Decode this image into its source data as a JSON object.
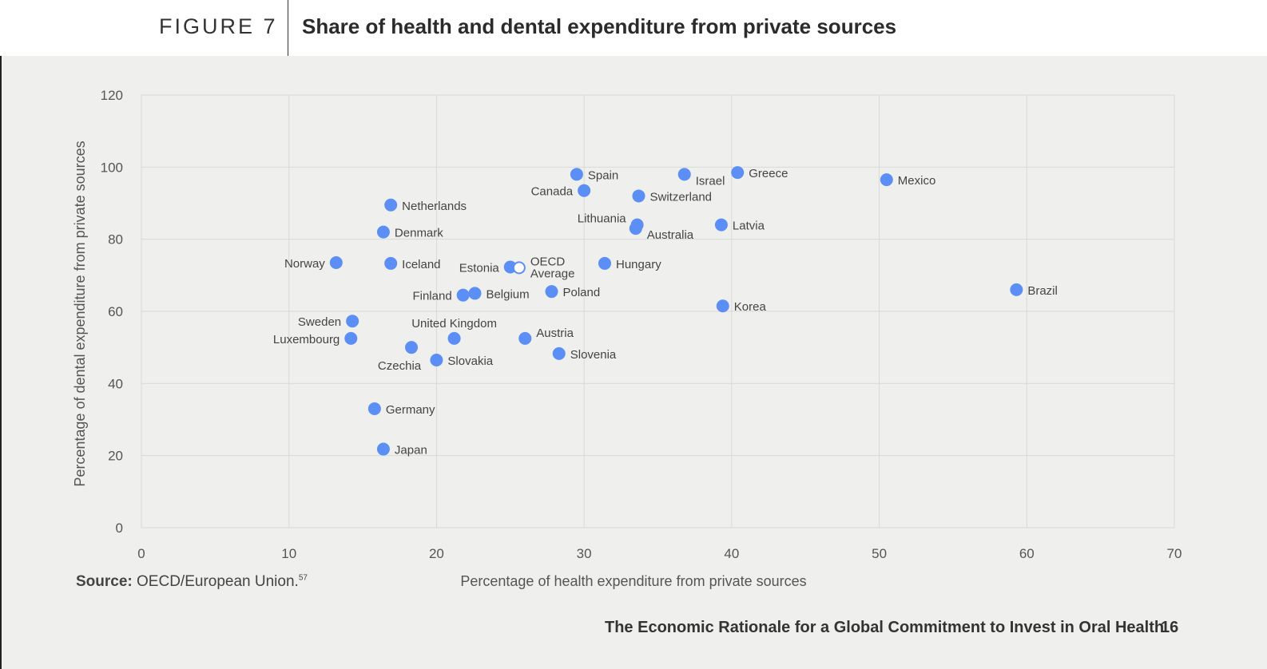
{
  "figure": {
    "number": "FIGURE 7",
    "title": "Share of health and dental expenditure from private sources"
  },
  "source": {
    "label": "Source:",
    "text": "OECD/European Union.",
    "ref": "57"
  },
  "footer": {
    "text": "The Economic Rationale for a Global Commitment to Invest in Oral Health",
    "page": "16"
  },
  "colors": {
    "point": "#5b8ff5",
    "grid": "#d9d9d6",
    "background": "#efefed"
  },
  "chart_data": {
    "type": "scatter",
    "title": "Share of health and dental expenditure from private sources",
    "xlabel": "Percentage of health expenditure from private sources",
    "ylabel": "Percentage of dental expenditure from private sources",
    "xlim": [
      0,
      70
    ],
    "ylim": [
      0,
      120
    ],
    "xticks": [
      0,
      10,
      20,
      30,
      40,
      50,
      60,
      70
    ],
    "yticks": [
      0,
      20,
      40,
      60,
      80,
      100,
      120
    ],
    "grid": true,
    "points": [
      {
        "label": "Spain",
        "x": 29.5,
        "y": 98,
        "pos": "right"
      },
      {
        "label": "Israel",
        "x": 36.8,
        "y": 98,
        "pos": "right-low"
      },
      {
        "label": "Greece",
        "x": 40.4,
        "y": 98.5,
        "pos": "right"
      },
      {
        "label": "Mexico",
        "x": 50.5,
        "y": 96.5,
        "pos": "right"
      },
      {
        "label": "Canada",
        "x": 30,
        "y": 93.5,
        "pos": "left"
      },
      {
        "label": "Switzerland",
        "x": 33.7,
        "y": 92,
        "pos": "right"
      },
      {
        "label": "Netherlands",
        "x": 16.9,
        "y": 89.5,
        "pos": "right"
      },
      {
        "label": "Lithuania",
        "x": 33.6,
        "y": 84,
        "pos": "left-high"
      },
      {
        "label": "Latvia",
        "x": 39.3,
        "y": 84,
        "pos": "right"
      },
      {
        "label": "Australia",
        "x": 33.5,
        "y": 83,
        "pos": "right-low"
      },
      {
        "label": "Denmark",
        "x": 16.4,
        "y": 82,
        "pos": "right"
      },
      {
        "label": "Norway",
        "x": 13.2,
        "y": 73.5,
        "pos": "left"
      },
      {
        "label": "Iceland",
        "x": 16.9,
        "y": 73.3,
        "pos": "right"
      },
      {
        "label": "Hungary",
        "x": 31.4,
        "y": 73.3,
        "pos": "right"
      },
      {
        "label": "Estonia",
        "x": 25,
        "y": 72.3,
        "pos": "left"
      },
      {
        "label": "OECD Average",
        "x": 25.6,
        "y": 72.1,
        "pos": "right",
        "hollow": true
      },
      {
        "label": "Brazil",
        "x": 59.3,
        "y": 66,
        "pos": "right"
      },
      {
        "label": "Poland",
        "x": 27.8,
        "y": 65.5,
        "pos": "right"
      },
      {
        "label": "Belgium",
        "x": 22.6,
        "y": 65,
        "pos": "right"
      },
      {
        "label": "Finland",
        "x": 21.8,
        "y": 64.5,
        "pos": "left"
      },
      {
        "label": "Korea",
        "x": 39.4,
        "y": 61.5,
        "pos": "right"
      },
      {
        "label": "Sweden",
        "x": 14.3,
        "y": 57.3,
        "pos": "left"
      },
      {
        "label": "Luxembourg",
        "x": 14.2,
        "y": 52.5,
        "pos": "left"
      },
      {
        "label": "United Kingdom",
        "x": 21.2,
        "y": 52.5,
        "pos": "above"
      },
      {
        "label": "Austria",
        "x": 26,
        "y": 52.5,
        "pos": "right-high"
      },
      {
        "label": "Czechia",
        "x": 18.3,
        "y": 50,
        "pos": "below-left"
      },
      {
        "label": "Slovenia",
        "x": 28.3,
        "y": 48.3,
        "pos": "right"
      },
      {
        "label": "Slovakia",
        "x": 20,
        "y": 46.5,
        "pos": "right"
      },
      {
        "label": "Germany",
        "x": 15.8,
        "y": 33,
        "pos": "right"
      },
      {
        "label": "Japan",
        "x": 16.4,
        "y": 21.8,
        "pos": "right"
      }
    ]
  }
}
